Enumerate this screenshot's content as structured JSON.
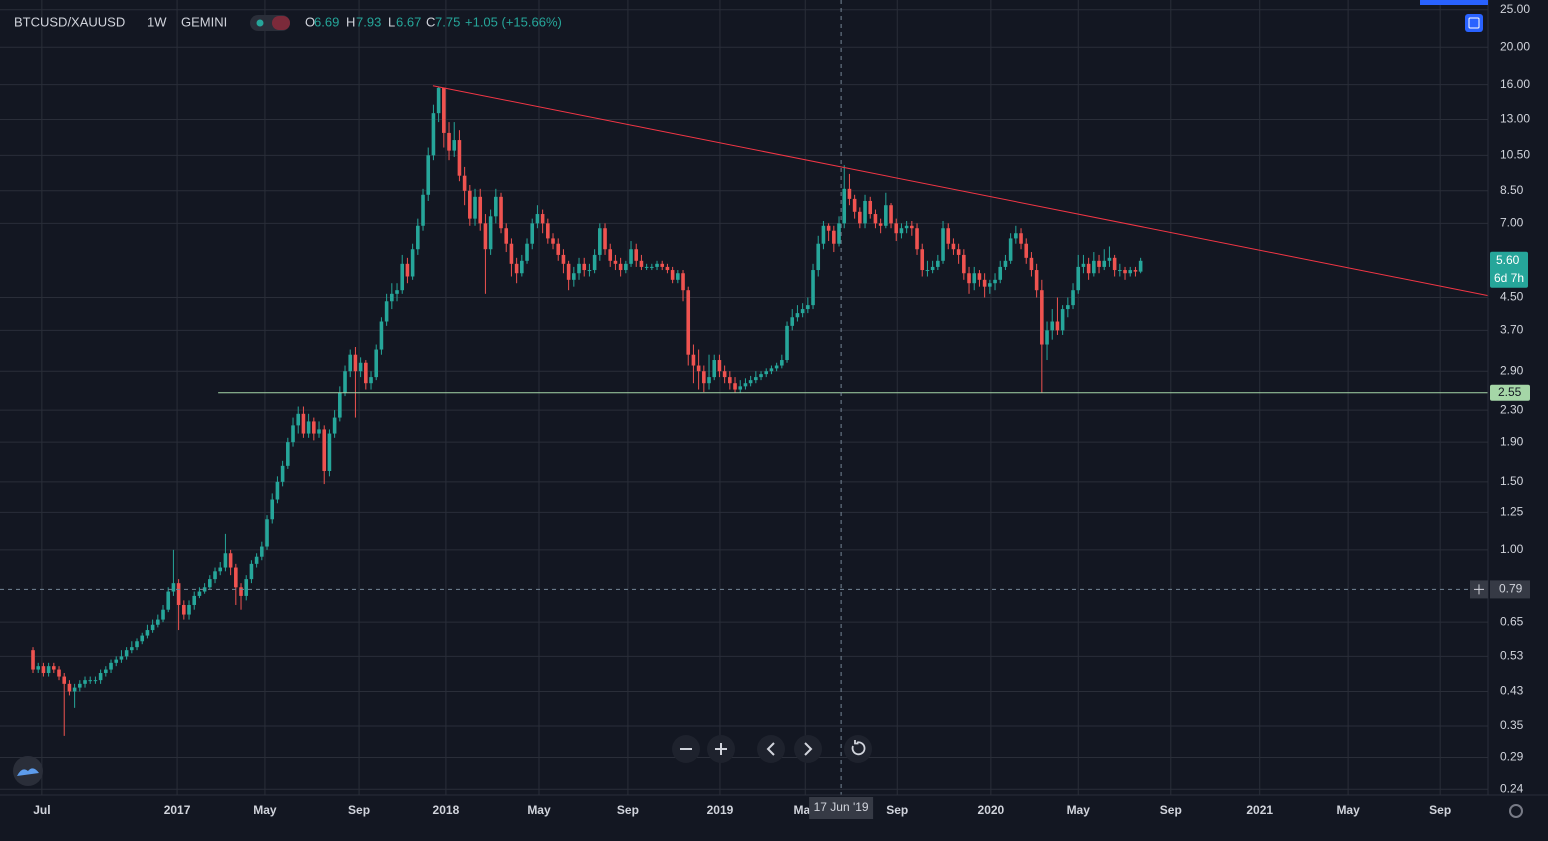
{
  "chart_data": {
    "type": "candlestick",
    "symbol": "BTCUSD/XAUUSD",
    "interval": "1W",
    "exchange": "GEMINI",
    "legend": {
      "o_label": "O",
      "o": "6.69",
      "h_label": "H",
      "h": "7.93",
      "l_label": "L",
      "l": "6.67",
      "c_label": "C",
      "c": "7.75",
      "change": "+1.05 (+15.66%)"
    },
    "up_color": "#26a69a",
    "down_color": "#ef5350",
    "log_scale": true,
    "grid": true,
    "xlim": [
      -6.35,
      279.8
    ],
    "ylim": [
      0.232,
      26.5
    ],
    "xticks": [
      {
        "value": 1.7,
        "label": "Jul"
      },
      {
        "value": 27.7,
        "label": "2017"
      },
      {
        "value": 44.6,
        "label": "May"
      },
      {
        "value": 62.7,
        "label": "Sep"
      },
      {
        "value": 79.4,
        "label": "2018"
      },
      {
        "value": 97.3,
        "label": "May"
      },
      {
        "value": 114.4,
        "label": "Sep"
      },
      {
        "value": 132.1,
        "label": "2019"
      },
      {
        "value": 148.5,
        "label": "May"
      },
      {
        "value": 166.2,
        "label": "Sep"
      },
      {
        "value": 184.2,
        "label": "2020"
      },
      {
        "value": 201,
        "label": "May"
      },
      {
        "value": 218.8,
        "label": "Sep"
      },
      {
        "value": 235.9,
        "label": "2021"
      },
      {
        "value": 252.9,
        "label": "May"
      },
      {
        "value": 270.6,
        "label": "Sep"
      }
    ],
    "yticks": [
      {
        "value": 25,
        "label": "25.00"
      },
      {
        "value": 20,
        "label": "20.00"
      },
      {
        "value": 16,
        "label": "16.00"
      },
      {
        "value": 13,
        "label": "13.00"
      },
      {
        "value": 10.5,
        "label": "10.50"
      },
      {
        "value": 8.5,
        "label": "8.50"
      },
      {
        "value": 7,
        "label": "7.00"
      },
      {
        "value": 4.5,
        "label": "4.50"
      },
      {
        "value": 3.7,
        "label": "3.70"
      },
      {
        "value": 2.9,
        "label": "2.90"
      },
      {
        "value": 2.3,
        "label": "2.30"
      },
      {
        "value": 1.9,
        "label": "1.90"
      },
      {
        "value": 1.5,
        "label": "1.50"
      },
      {
        "value": 1.25,
        "label": "1.25"
      },
      {
        "value": 1,
        "label": "1.00"
      },
      {
        "value": 0.65,
        "label": "0.65"
      },
      {
        "value": 0.53,
        "label": "0.53"
      },
      {
        "value": 0.43,
        "label": "0.43"
      },
      {
        "value": 0.35,
        "label": "0.35"
      },
      {
        "value": 0.29,
        "label": "0.29"
      },
      {
        "value": 0.24,
        "label": "0.24"
      }
    ],
    "open": [
      0.55,
      0.49,
      0.5,
      0.48,
      0.5,
      0.49,
      0.47,
      0.45,
      0.43,
      0.44,
      0.45,
      0.46,
      0.46,
      0.46,
      0.48,
      0.49,
      0.51,
      0.52,
      0.53,
      0.55,
      0.56,
      0.58,
      0.6,
      0.62,
      0.64,
      0.66,
      0.7,
      0.78,
      0.82,
      0.72,
      0.68,
      0.72,
      0.76,
      0.78,
      0.8,
      0.84,
      0.88,
      0.9,
      0.98,
      0.9,
      0.8,
      0.76,
      0.84,
      0.92,
      0.96,
      1.02,
      1.2,
      1.35,
      1.5,
      1.65,
      1.9,
      2.1,
      2.25,
      2.0,
      2.15,
      2.0,
      2.05,
      1.6,
      2.0,
      2.2,
      2.55,
      2.9,
      3.2,
      2.9,
      3.05,
      2.7,
      2.8,
      3.3,
      3.9,
      4.4,
      4.6,
      4.7,
      5.5,
      5.1,
      6.0,
      6.9,
      8.3,
      10.5,
      13.5,
      15.7,
      12.0,
      10.8,
      11.5,
      9.3,
      8.5,
      7.2,
      8.2,
      7.0,
      6.0,
      7.3,
      8.2,
      6.8,
      6.2,
      5.5,
      5.2,
      5.6,
      6.2,
      7.0,
      7.4,
      7.0,
      6.4,
      6.2,
      5.8,
      5.5,
      5.0,
      5.2,
      5.5,
      5.3,
      5.3,
      5.8,
      6.8,
      6.0,
      5.6,
      5.5,
      5.3,
      5.5,
      6.0,
      5.6,
      5.4,
      5.4,
      5.4,
      5.5,
      5.4,
      5.3,
      5.0,
      5.2,
      4.7,
      3.2,
      3.0,
      2.9,
      2.7,
      2.8,
      3.1,
      2.9,
      2.8,
      2.7,
      2.6,
      2.65,
      2.7,
      2.75,
      2.8,
      2.85,
      2.9,
      2.95,
      3.0,
      3.1,
      3.8,
      4.0,
      4.1,
      4.2,
      4.3,
      5.3,
      6.2,
      6.9,
      6.7,
      6.2,
      7.0,
      8.6,
      8.1,
      7.5,
      7.0,
      8.0,
      7.4,
      7.0,
      6.9,
      7.8,
      7.0,
      6.6,
      6.8,
      6.9,
      6.8,
      6.0,
      5.3,
      5.3,
      5.4,
      5.6,
      6.8,
      6.2,
      6.0,
      5.8,
      5.2,
      4.9,
      5.2,
      5.0,
      4.8,
      4.9,
      5.0,
      5.4,
      5.6,
      6.4,
      6.6,
      6.2,
      5.7,
      5.3,
      4.7,
      3.4,
      3.7,
      3.9,
      3.7,
      4.2,
      4.3,
      4.7,
      5.4,
      5.5,
      5.2,
      5.6,
      5.4,
      5.6,
      5.7,
      5.3,
      5.3,
      5.2,
      5.3,
      5.25
    ],
    "high": [
      0.56,
      0.51,
      0.51,
      0.51,
      0.51,
      0.5,
      0.48,
      0.46,
      0.45,
      0.46,
      0.47,
      0.47,
      0.47,
      0.49,
      0.5,
      0.52,
      0.53,
      0.55,
      0.56,
      0.58,
      0.59,
      0.61,
      0.64,
      0.66,
      0.68,
      0.72,
      0.8,
      1.0,
      0.84,
      0.74,
      0.74,
      0.78,
      0.8,
      0.82,
      0.86,
      0.9,
      0.93,
      1.1,
      1.0,
      0.92,
      0.82,
      0.86,
      0.94,
      0.98,
      1.05,
      1.23,
      1.4,
      1.55,
      1.7,
      1.95,
      2.2,
      2.35,
      2.35,
      2.25,
      2.2,
      2.15,
      2.1,
      2.05,
      2.3,
      2.65,
      3.0,
      3.3,
      3.35,
      3.15,
      3.1,
      2.9,
      3.4,
      4.0,
      4.6,
      4.9,
      4.9,
      5.8,
      5.7,
      6.2,
      7.2,
      8.6,
      11.0,
      14.2,
      15.8,
      15.6,
      12.8,
      12.8,
      12.2,
      9.8,
      8.8,
      8.6,
      8.6,
      7.4,
      7.6,
      8.6,
      8.4,
      7.0,
      6.4,
      5.7,
      5.8,
      6.4,
      7.2,
      7.8,
      7.6,
      7.2,
      6.6,
      6.4,
      6.0,
      5.6,
      5.4,
      5.7,
      5.7,
      5.5,
      6.0,
      7.0,
      7.0,
      6.2,
      5.8,
      5.7,
      5.6,
      6.3,
      6.2,
      5.8,
      5.5,
      5.5,
      5.6,
      5.6,
      5.5,
      5.4,
      5.3,
      5.3,
      4.8,
      3.4,
      3.3,
      3.0,
      3.2,
      3.2,
      3.2,
      3.0,
      2.9,
      2.8,
      2.75,
      2.78,
      2.82,
      2.9,
      2.9,
      2.95,
      3.0,
      3.05,
      3.2,
      3.9,
      4.2,
      4.3,
      4.35,
      4.5,
      5.5,
      6.5,
      7.1,
      7.0,
      6.9,
      7.3,
      9.9,
      9.4,
      8.3,
      7.7,
      8.3,
      8.2,
      7.6,
      7.2,
      8.4,
      7.9,
      7.2,
      7.0,
      7.1,
      7.1,
      7.0,
      6.2,
      5.6,
      5.6,
      5.8,
      7.1,
      7.0,
      6.4,
      6.2,
      6.0,
      5.4,
      5.4,
      5.3,
      5.2,
      5.0,
      5.2,
      5.6,
      5.8,
      6.6,
      6.9,
      6.8,
      6.4,
      5.9,
      5.5,
      5.0,
      3.9,
      4.2,
      4.5,
      4.3,
      4.5,
      4.9,
      5.8,
      5.8,
      5.7,
      5.9,
      5.8,
      6.0,
      6.1,
      5.8,
      5.5,
      5.4,
      5.4,
      5.4,
      5.7
    ],
    "low": [
      0.48,
      0.48,
      0.47,
      0.47,
      0.48,
      0.46,
      0.33,
      0.42,
      0.39,
      0.43,
      0.44,
      0.45,
      0.45,
      0.45,
      0.47,
      0.48,
      0.5,
      0.51,
      0.52,
      0.54,
      0.55,
      0.57,
      0.59,
      0.61,
      0.63,
      0.65,
      0.69,
      0.76,
      0.62,
      0.66,
      0.66,
      0.7,
      0.75,
      0.77,
      0.79,
      0.82,
      0.86,
      0.88,
      0.86,
      0.72,
      0.7,
      0.74,
      0.82,
      0.9,
      0.94,
      1.0,
      1.17,
      1.32,
      1.46,
      1.62,
      1.85,
      2.0,
      1.95,
      1.95,
      1.92,
      1.95,
      1.48,
      1.55,
      1.95,
      2.15,
      2.5,
      2.8,
      2.2,
      2.8,
      2.6,
      2.6,
      2.75,
      3.2,
      3.8,
      4.2,
      4.4,
      4.6,
      4.9,
      5.0,
      5.8,
      6.7,
      8.0,
      10.2,
      12.8,
      11.0,
      10.2,
      10.4,
      9.0,
      7.8,
      6.9,
      6.9,
      6.7,
      4.6,
      5.8,
      7.0,
      6.6,
      5.9,
      5.1,
      4.9,
      5.1,
      5.5,
      6.0,
      6.8,
      6.6,
      6.2,
      6.0,
      5.6,
      5.2,
      4.7,
      4.8,
      5.0,
      5.1,
      5.1,
      5.2,
      5.6,
      5.8,
      5.4,
      5.3,
      5.1,
      5.2,
      5.4,
      5.4,
      5.3,
      5.3,
      5.3,
      5.3,
      5.3,
      5.2,
      4.9,
      4.9,
      4.4,
      3.0,
      2.7,
      2.6,
      2.56,
      2.6,
      2.75,
      2.8,
      2.7,
      2.6,
      2.55,
      2.55,
      2.6,
      2.65,
      2.7,
      2.75,
      2.8,
      2.85,
      2.9,
      2.95,
      3.05,
      3.7,
      3.9,
      4.0,
      4.1,
      4.2,
      5.1,
      6.0,
      6.3,
      5.9,
      6.1,
      6.8,
      7.8,
      7.2,
      6.8,
      6.8,
      7.2,
      6.8,
      6.6,
      6.8,
      6.8,
      6.3,
      6.4,
      6.6,
      6.5,
      5.8,
      5.1,
      5.1,
      5.2,
      5.3,
      5.5,
      6.0,
      5.8,
      5.5,
      5.0,
      4.6,
      4.7,
      4.8,
      4.5,
      4.6,
      4.7,
      4.9,
      5.3,
      5.5,
      6.2,
      6.0,
      5.5,
      5.1,
      4.5,
      2.55,
      3.1,
      3.5,
      3.6,
      3.6,
      4.0,
      4.2,
      4.6,
      5.2,
      5.0,
      5.1,
      5.2,
      5.3,
      5.4,
      5.1,
      5.1,
      5.0,
      5.1,
      5.1,
      5.2
    ],
    "close": [
      0.49,
      0.5,
      0.48,
      0.5,
      0.49,
      0.47,
      0.45,
      0.43,
      0.44,
      0.45,
      0.46,
      0.46,
      0.46,
      0.48,
      0.49,
      0.51,
      0.52,
      0.53,
      0.55,
      0.56,
      0.58,
      0.6,
      0.62,
      0.64,
      0.66,
      0.7,
      0.78,
      0.82,
      0.72,
      0.68,
      0.72,
      0.76,
      0.78,
      0.8,
      0.84,
      0.88,
      0.9,
      0.98,
      0.9,
      0.8,
      0.76,
      0.84,
      0.92,
      0.96,
      1.02,
      1.2,
      1.35,
      1.5,
      1.65,
      1.9,
      2.1,
      2.25,
      2.0,
      2.15,
      2.0,
      2.05,
      1.6,
      2.0,
      2.2,
      2.55,
      2.9,
      3.2,
      2.9,
      3.05,
      2.7,
      2.8,
      3.3,
      3.9,
      4.4,
      4.6,
      4.7,
      5.5,
      5.1,
      6.0,
      6.9,
      8.3,
      10.5,
      13.5,
      15.7,
      12.0,
      10.8,
      11.5,
      9.3,
      8.5,
      7.2,
      8.2,
      7.0,
      6.0,
      7.3,
      8.2,
      6.8,
      6.2,
      5.5,
      5.2,
      5.6,
      6.2,
      7.0,
      7.4,
      7.0,
      6.4,
      6.2,
      5.8,
      5.5,
      5.0,
      5.2,
      5.5,
      5.3,
      5.3,
      5.8,
      6.8,
      6.0,
      5.6,
      5.5,
      5.3,
      5.5,
      6.0,
      5.6,
      5.4,
      5.4,
      5.4,
      5.5,
      5.4,
      5.3,
      5.0,
      5.2,
      4.7,
      3.2,
      3.0,
      2.9,
      2.7,
      2.8,
      3.1,
      2.9,
      2.8,
      2.7,
      2.6,
      2.65,
      2.7,
      2.75,
      2.8,
      2.85,
      2.9,
      2.95,
      3.0,
      3.1,
      3.8,
      4.0,
      4.1,
      4.2,
      4.3,
      5.3,
      6.2,
      6.9,
      6.7,
      6.2,
      7.0,
      8.6,
      8.1,
      7.5,
      7.0,
      8.0,
      7.4,
      7.0,
      6.9,
      7.8,
      7.0,
      6.6,
      6.8,
      6.9,
      6.8,
      6.0,
      5.3,
      5.3,
      5.4,
      5.6,
      6.8,
      6.2,
      6.0,
      5.8,
      5.2,
      4.9,
      5.2,
      5.0,
      4.8,
      4.9,
      5.0,
      5.4,
      5.6,
      6.4,
      6.6,
      6.2,
      5.7,
      5.3,
      4.7,
      3.4,
      3.7,
      3.9,
      3.7,
      4.2,
      4.3,
      4.7,
      5.4,
      5.5,
      5.2,
      5.6,
      5.4,
      5.6,
      5.7,
      5.3,
      5.3,
      5.2,
      5.3,
      5.25,
      5.6
    ],
    "last_price": {
      "value": 5.6,
      "label": "5.60",
      "countdown": "6d 7h"
    },
    "trendline": {
      "x": [
        76.9,
        279.8
      ],
      "y": [
        15.9,
        4.55
      ],
      "color": "#f23645"
    },
    "support": {
      "value": 2.55,
      "label": "2.55",
      "x_start": 35.6,
      "color": "#a5d6a7"
    },
    "crosshair": {
      "x": 155.4,
      "date_label": "17 Jun '19",
      "price": 0.79,
      "price_label": "0.79"
    }
  }
}
